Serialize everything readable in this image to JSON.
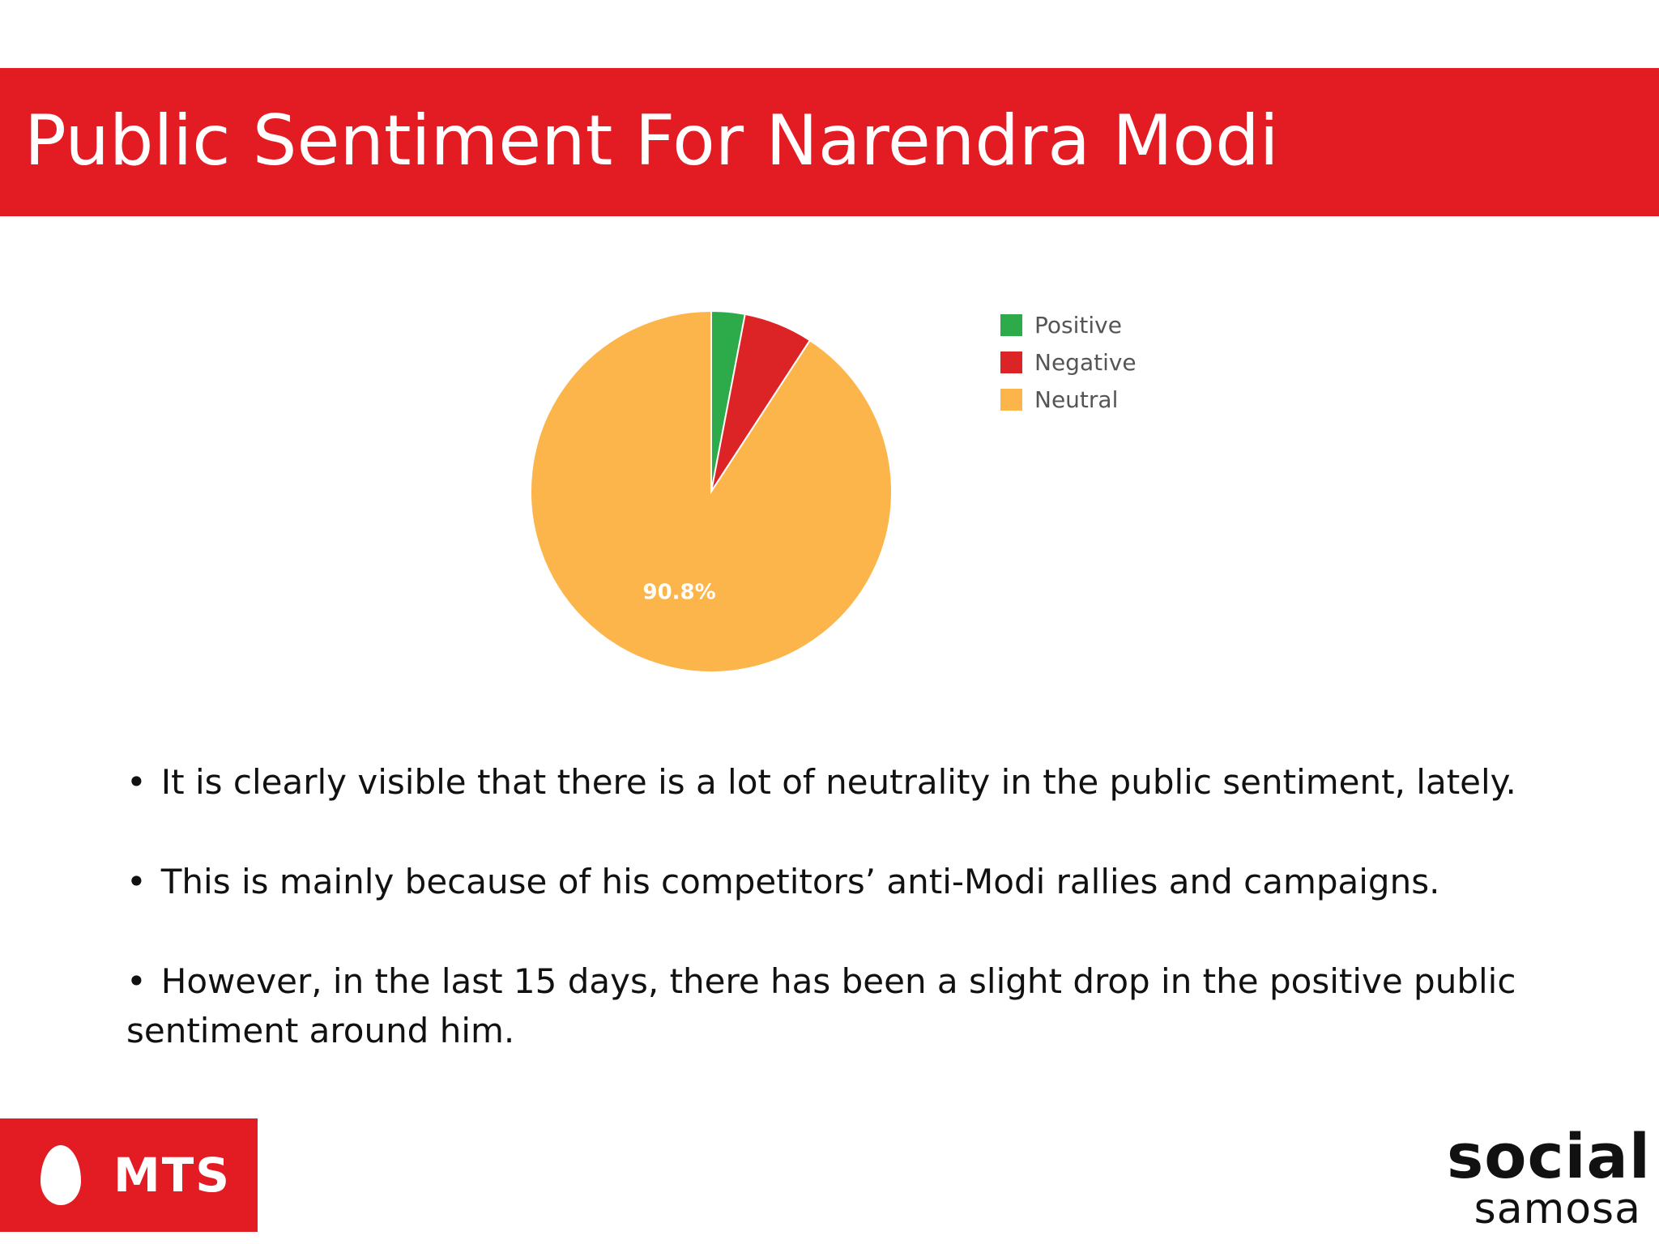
{
  "slide": {
    "title": "Public Sentiment For Narendra Modi"
  },
  "chart_data": {
    "type": "pie",
    "categories": [
      "Positive",
      "Negative",
      "Neutral"
    ],
    "values": [
      3.0,
      6.2,
      90.8
    ],
    "value_unit": "%",
    "slice_labels": [
      "",
      "",
      "90.8%"
    ],
    "legend": {
      "entries": [
        "Positive",
        "Negative",
        "Neutral"
      ],
      "placement": "right"
    },
    "colors": [
      "#2daa4a",
      "#dc2326",
      "#fbb54a"
    ]
  },
  "bullets": [
    "It is clearly visible that there is a lot of neutrality in the public sentiment, lately.",
    "This is mainly because of his competitors’ anti-Modi rallies and campaigns.",
    "However, in the last 15 days, there has been a slight drop in the positive public sentiment around him."
  ],
  "bullet_symbol": "•",
  "logos": {
    "mts": "MTS",
    "social_samosa_top": "social",
    "social_samosa_bottom": "samosa"
  }
}
